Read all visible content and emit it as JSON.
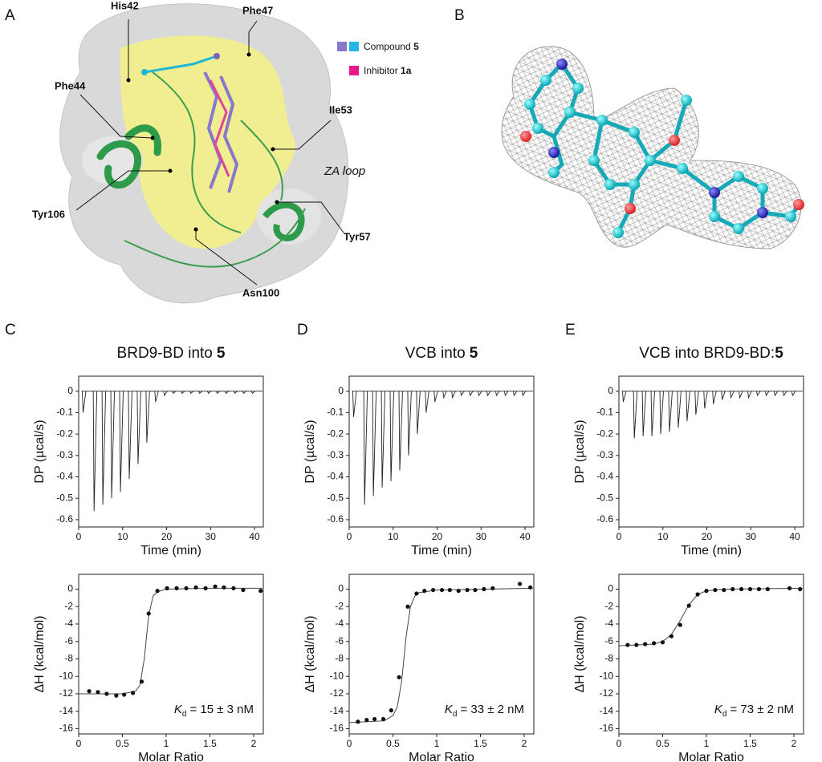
{
  "panel_labels": [
    "A",
    "B",
    "C",
    "D",
    "E"
  ],
  "panel_a": {
    "residues": [
      "His42",
      "Phe47",
      "Phe44",
      "Ile53",
      "Tyr106",
      "Tyr57",
      "Asn100"
    ],
    "loop_label": "ZA loop",
    "legend": [
      {
        "text": "Compound",
        "bold": "5"
      },
      {
        "text": "Inhibitor",
        "bold": "1a"
      }
    ]
  },
  "chart_data": [
    {
      "type": "line",
      "title": "BRD9-BD into",
      "title_bold": "5",
      "xlabel": "Time (min)",
      "ylabel": "DP (µcal/s)",
      "color": "#222",
      "x": [
        1,
        3.5,
        5.5,
        7.5,
        9.5,
        11.5,
        13.5,
        15.5,
        17.5,
        19.5,
        21.5,
        23.5,
        25.5,
        27.5,
        29.5,
        31.5,
        33.5,
        35.5,
        37.5,
        39.5
      ],
      "values": [
        -0.1,
        -0.56,
        -0.53,
        -0.5,
        -0.47,
        -0.41,
        -0.34,
        -0.24,
        -0.05,
        -0.02,
        -0.01,
        -0.01,
        -0.01,
        -0.01,
        -0.01,
        -0.01,
        -0.01,
        -0.01,
        -0.01,
        -0.01
      ],
      "xlim": [
        0,
        42
      ],
      "ylim": [
        -0.634,
        0.07
      ],
      "xticks": [
        0,
        10,
        20,
        30,
        40
      ],
      "yticks": [
        0,
        -0.1,
        -0.2,
        -0.3,
        -0.4,
        -0.5,
        -0.6
      ]
    },
    {
      "type": "line",
      "title": "VCB into",
      "title_bold": "5",
      "xlabel": "Time (min)",
      "ylabel": "DP (µcal/s)",
      "color": "#222",
      "x": [
        1,
        3.5,
        5.5,
        7.5,
        9.5,
        11.5,
        13.5,
        15.5,
        17.5,
        19.5,
        21.5,
        23.5,
        25.5,
        27.5,
        29.5,
        31.5,
        33.5,
        35.5,
        37.5,
        39.5
      ],
      "values": [
        -0.12,
        -0.53,
        -0.49,
        -0.45,
        -0.42,
        -0.37,
        -0.3,
        -0.2,
        -0.1,
        -0.05,
        -0.03,
        -0.03,
        -0.02,
        -0.02,
        -0.02,
        -0.02,
        -0.02,
        -0.02,
        -0.02,
        -0.02
      ],
      "xlim": [
        0,
        42
      ],
      "ylim": [
        -0.634,
        0.07
      ],
      "xticks": [
        0,
        10,
        20,
        30,
        40
      ],
      "yticks": [
        0,
        -0.1,
        -0.2,
        -0.3,
        -0.4,
        -0.5,
        -0.6
      ]
    },
    {
      "type": "line",
      "title": "VCB into BRD9-BD:",
      "title_bold": "5",
      "xlabel": "Time (min)",
      "ylabel": "DP (µcal/s)",
      "color": "#222",
      "x": [
        1,
        3.5,
        5.5,
        7.5,
        9.5,
        11.5,
        13.5,
        15.5,
        17.5,
        19.5,
        21.5,
        23.5,
        25.5,
        27.5,
        29.5,
        31.5,
        33.5,
        35.5,
        37.5,
        39.5
      ],
      "values": [
        -0.05,
        -0.22,
        -0.21,
        -0.21,
        -0.2,
        -0.19,
        -0.17,
        -0.14,
        -0.11,
        -0.08,
        -0.06,
        -0.04,
        -0.03,
        -0.03,
        -0.03,
        -0.02,
        -0.02,
        -0.02,
        -0.02,
        -0.02
      ],
      "xlim": [
        0,
        42
      ],
      "ylim": [
        -0.634,
        0.07
      ],
      "xticks": [
        0,
        10,
        20,
        30,
        40
      ],
      "yticks": [
        0,
        -0.1,
        -0.2,
        -0.3,
        -0.4,
        -0.5,
        -0.6
      ]
    },
    {
      "type": "scatter",
      "xlabel": "Molar Ratio",
      "ylabel": "ΔH (kcal/mol)",
      "color": "#111",
      "x": [
        0.12,
        0.22,
        0.32,
        0.43,
        0.52,
        0.62,
        0.72,
        0.8,
        0.9,
        1.01,
        1.12,
        1.23,
        1.34,
        1.45,
        1.56,
        1.66,
        1.77,
        1.88,
        2.08
      ],
      "values": [
        -11.7,
        -11.8,
        -12,
        -12.2,
        -12.1,
        -11.9,
        -10.6,
        -2.8,
        -0.2,
        0.1,
        0.1,
        0.1,
        0.2,
        0.1,
        0.3,
        0.2,
        0.1,
        -0.1,
        -0.2
      ],
      "fit_x": [
        0,
        0.5,
        0.65,
        0.7,
        0.75,
        0.8,
        0.85,
        0.9,
        1,
        1.5,
        2.1
      ],
      "fit_values": [
        -12,
        -12,
        -11.7,
        -11,
        -8,
        -3,
        -0.8,
        -0.3,
        0,
        0.1,
        0.1
      ],
      "annotation": {
        "symbol": "K",
        "subscript": "d",
        "text": "= 15 ± 3 nM"
      },
      "xlim": [
        0,
        2.11
      ],
      "ylim": [
        -16.6,
        1.7
      ],
      "xticks": [
        0,
        0.5,
        1,
        1.5,
        2
      ],
      "yticks": [
        0,
        -2,
        -4,
        -6,
        -8,
        -10,
        -12,
        -14,
        -16
      ]
    },
    {
      "type": "scatter",
      "xlabel": "Molar Ratio",
      "ylabel": "ΔH (kcal/mol)",
      "color": "#111",
      "x": [
        0.1,
        0.2,
        0.29,
        0.39,
        0.48,
        0.57,
        0.67,
        0.77,
        0.86,
        0.96,
        1.06,
        1.15,
        1.25,
        1.35,
        1.44,
        1.54,
        1.64,
        1.95,
        2.07
      ],
      "values": [
        -15.2,
        -15,
        -14.9,
        -14.9,
        -13.9,
        -10.1,
        -2,
        -0.5,
        -0.2,
        -0.1,
        -0.1,
        -0.1,
        -0.2,
        -0.1,
        -0.1,
        0,
        0.1,
        0.6,
        0.2
      ],
      "fit_x": [
        0,
        0.4,
        0.5,
        0.55,
        0.6,
        0.65,
        0.7,
        0.75,
        0.8,
        1,
        2.1
      ],
      "fit_values": [
        -15.3,
        -15.1,
        -14.5,
        -13.5,
        -10.5,
        -5.5,
        -2,
        -0.8,
        -0.4,
        -0.1,
        0.1
      ],
      "annotation": {
        "symbol": "K",
        "subscript": "d",
        "text": "= 33 ± 2 nM"
      },
      "xlim": [
        0,
        2.11
      ],
      "ylim": [
        -16.6,
        1.7
      ],
      "xticks": [
        0,
        0.5,
        1,
        1.5,
        2
      ],
      "yticks": [
        0,
        -2,
        -4,
        -6,
        -8,
        -10,
        -12,
        -14,
        -16
      ]
    },
    {
      "type": "scatter",
      "xlabel": "Molar Ratio",
      "ylabel": "ΔH (kcal/mol)",
      "color": "#111",
      "x": [
        0.1,
        0.2,
        0.3,
        0.4,
        0.5,
        0.6,
        0.7,
        0.8,
        0.9,
        1.0,
        1.1,
        1.2,
        1.3,
        1.4,
        1.5,
        1.6,
        1.7,
        1.95,
        2.07
      ],
      "values": [
        -6.4,
        -6.4,
        -6.3,
        -6.2,
        -6.1,
        -5.4,
        -4.1,
        -1.9,
        -0.6,
        -0.2,
        -0.1,
        -0.1,
        0,
        0,
        0,
        0,
        0,
        0.1,
        0
      ],
      "fit_x": [
        0,
        0.4,
        0.5,
        0.6,
        0.7,
        0.8,
        0.9,
        1,
        1.2,
        2.1
      ],
      "fit_values": [
        -6.5,
        -6.3,
        -6,
        -5.2,
        -3.6,
        -1.8,
        -0.6,
        -0.2,
        0,
        0.1
      ],
      "annotation": {
        "symbol": "K",
        "subscript": "d",
        "text": "= 73 ± 2 nM"
      },
      "xlim": [
        0,
        2.11
      ],
      "ylim": [
        -16.6,
        1.7
      ],
      "xticks": [
        0,
        0.5,
        1,
        1.5,
        2
      ],
      "yticks": [
        0,
        -2,
        -4,
        -6,
        -8,
        -10,
        -12,
        -14,
        -16
      ]
    }
  ]
}
